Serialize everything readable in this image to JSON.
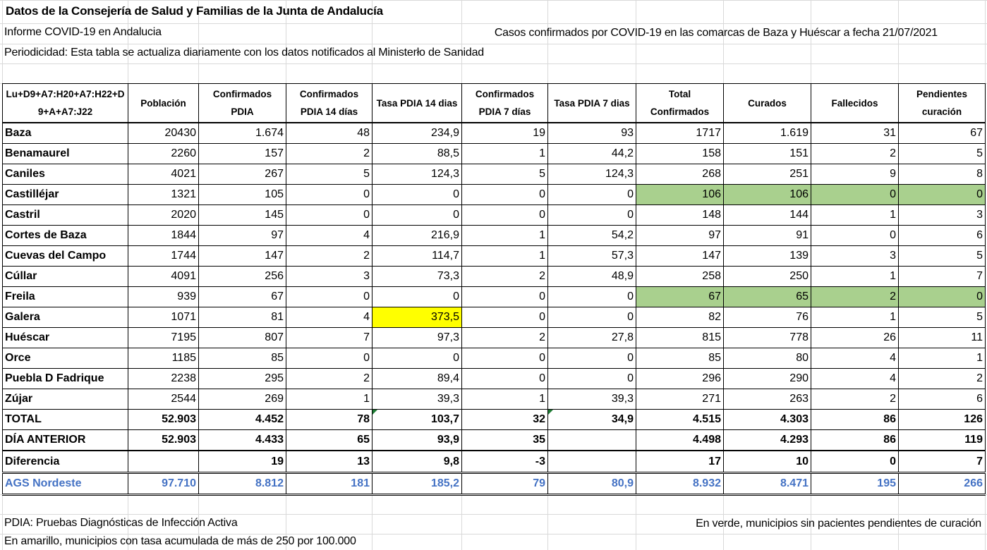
{
  "sheet": {
    "title": "Datos de la Consejería de Salud y Familias de la Junta de Andalucía",
    "report": "Informe COVID-19 en Andalucia",
    "subtitle": "Casos confirmados por COVID-19 en las comarcas de Baza y Huéscar a fecha 21/07/2021",
    "periodicity": "Periodicidad: Esta tabla se actualiza diariamente con los datos notificados al Ministerło de Sanidad"
  },
  "table": {
    "headers": [
      "Lu+D9+A7:H20+A7:H22+D9+A+A7:J22",
      "Población",
      "Confirmados PDIA",
      "Confirmados PDIA 14 días",
      "Tasa PDIA 14 dias",
      "Confirmados PDIA 7 días",
      "Tasa PDIA 7 dias",
      "Total Confirmados",
      "Curados",
      "Fallecidos",
      "Pendientes curación"
    ],
    "rows": [
      {
        "cells": [
          "Baza",
          "20430",
          "1.674",
          "48",
          "234,9",
          "19",
          "93",
          "1717",
          "1.619",
          "31",
          "67"
        ]
      },
      {
        "cells": [
          "Benamaurel",
          "2260",
          "157",
          "2",
          "88,5",
          "1",
          "44,2",
          "158",
          "151",
          "2",
          "5"
        ]
      },
      {
        "cells": [
          "Caniles",
          "4021",
          "267",
          "5",
          "124,3",
          "5",
          "124,3",
          "268",
          "251",
          "9",
          "8"
        ]
      },
      {
        "cells": [
          "Castilléjar",
          "1321",
          "105",
          "0",
          "0",
          "0",
          "0",
          "106",
          "106",
          "0",
          "0"
        ],
        "highlight": "green"
      },
      {
        "cells": [
          "Castril",
          "2020",
          "145",
          "0",
          "0",
          "0",
          "0",
          "148",
          "144",
          "1",
          "3"
        ]
      },
      {
        "cells": [
          "Cortes de Baza",
          "1844",
          "97",
          "4",
          "216,9",
          "1",
          "54,2",
          "97",
          "91",
          "0",
          "6"
        ]
      },
      {
        "cells": [
          "Cuevas del Campo",
          "1744",
          "147",
          "2",
          "114,7",
          "1",
          "57,3",
          "147",
          "139",
          "3",
          "5"
        ]
      },
      {
        "cells": [
          "Cúllar",
          "4091",
          "256",
          "3",
          "73,3",
          "2",
          "48,9",
          "258",
          "250",
          "1",
          "7"
        ]
      },
      {
        "cells": [
          "Freila",
          "939",
          "67",
          "0",
          "0",
          "0",
          "0",
          "67",
          "65",
          "2",
          "0"
        ],
        "highlight": "green"
      },
      {
        "cells": [
          "Galera",
          "1071",
          "81",
          "4",
          "373,5",
          "0",
          "0",
          "82",
          "76",
          "1",
          "5"
        ],
        "highlight": "yellow"
      },
      {
        "cells": [
          "Huéscar",
          "7195",
          "807",
          "7",
          "97,3",
          "2",
          "27,8",
          "815",
          "778",
          "26",
          "11"
        ]
      },
      {
        "cells": [
          "Orce",
          "1185",
          "85",
          "0",
          "0",
          "0",
          "0",
          "85",
          "80",
          "4",
          "1"
        ]
      },
      {
        "cells": [
          "Puebla D Fadrique",
          "2238",
          "295",
          "2",
          "89,4",
          "0",
          "0",
          "296",
          "290",
          "4",
          "2"
        ]
      },
      {
        "cells": [
          "Zújar",
          "2544",
          "269",
          "1",
          "39,3",
          "1",
          "39,3",
          "271",
          "263",
          "2",
          "6"
        ]
      }
    ],
    "total": [
      "TOTAL",
      "52.903",
      "4.452",
      "78",
      "103,7",
      "32",
      "34,9",
      "4.515",
      "4.303",
      "86",
      "126"
    ],
    "previous": [
      "DÍA ANTERIOR",
      "52.903",
      "4.433",
      "65",
      "93,9",
      "35",
      "",
      "4.498",
      "4.293",
      "86",
      "119"
    ],
    "difference": [
      "Diferencia",
      "",
      "19",
      "13",
      "9,8",
      "-3",
      "",
      "17",
      "10",
      "0",
      "7"
    ],
    "ags": [
      "AGS Nordeste",
      "97.710",
      "8.812",
      "181",
      "185,2",
      "79",
      "80,9",
      "8.932",
      "8.471",
      "195",
      "266"
    ]
  },
  "footer": {
    "pdia": "PDIA: Pruebas Diagnósticas de Infección Activa",
    "yellow_note": "En amarillo, municipios con tasa acumulada de más de 250 por 100.000",
    "green_note": "En verde, municipios sin pacientes pendientes de curación"
  },
  "colors": {
    "green": "#a9d08e",
    "yellow": "#ffff00",
    "ags_blue": "#4472c4"
  }
}
